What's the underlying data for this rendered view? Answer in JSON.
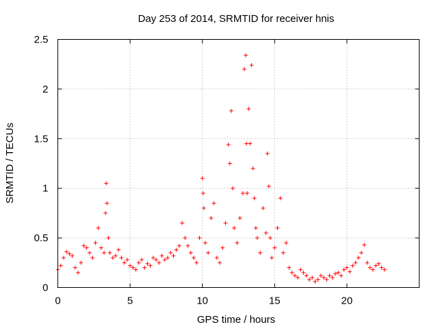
{
  "chart_data": {
    "type": "scatter",
    "title": "Day 253 of 2014, SRMTID for receiver hnis",
    "xlabel": "GPS time / hours",
    "ylabel": "SRMTID / TECUs",
    "xlim": [
      0,
      25
    ],
    "ylim": [
      0,
      2.5
    ],
    "xticks": [
      0,
      5,
      10,
      15,
      20
    ],
    "xtick_labels": [
      "0",
      "5",
      "10",
      "15",
      "20"
    ],
    "yticks": [
      0,
      0.5,
      1,
      1.5,
      2,
      2.5
    ],
    "ytick_labels": [
      "0",
      "0.5",
      "1",
      "1.5",
      "2",
      "2.5"
    ],
    "grid": true,
    "marker": "+",
    "color": "#ff0000",
    "series": [
      {
        "name": "SRMTID",
        "x": [
          0.0,
          0.2,
          0.4,
          0.6,
          0.8,
          1.0,
          1.2,
          1.4,
          1.6,
          1.8,
          2.0,
          2.2,
          2.4,
          2.6,
          2.8,
          3.0,
          3.2,
          3.3,
          3.35,
          3.4,
          3.5,
          3.6,
          3.8,
          4.0,
          4.2,
          4.4,
          4.6,
          4.8,
          5.0,
          5.2,
          5.4,
          5.6,
          5.8,
          6.0,
          6.2,
          6.4,
          6.6,
          6.8,
          7.0,
          7.2,
          7.4,
          7.6,
          7.8,
          8.0,
          8.2,
          8.4,
          8.6,
          8.8,
          9.0,
          9.2,
          9.4,
          9.6,
          9.8,
          10.0,
          10.05,
          10.1,
          10.2,
          10.4,
          10.6,
          10.8,
          11.0,
          11.2,
          11.4,
          11.6,
          11.8,
          11.9,
          12.0,
          12.1,
          12.2,
          12.4,
          12.6,
          12.8,
          12.9,
          13.0,
          13.05,
          13.1,
          13.2,
          13.3,
          13.4,
          13.5,
          13.6,
          13.7,
          13.8,
          14.0,
          14.2,
          14.4,
          14.5,
          14.6,
          14.7,
          14.8,
          15.0,
          15.2,
          15.4,
          15.6,
          15.8,
          16.0,
          16.2,
          16.4,
          16.6,
          16.8,
          17.0,
          17.2,
          17.4,
          17.6,
          17.8,
          18.0,
          18.2,
          18.4,
          18.6,
          18.8,
          19.0,
          19.2,
          19.4,
          19.6,
          19.8,
          20.0,
          20.2,
          20.4,
          20.6,
          20.8,
          21.0,
          21.2,
          21.4,
          21.6,
          21.8,
          22.0,
          22.2,
          22.4,
          22.6
        ],
        "y": [
          0.18,
          0.22,
          0.3,
          0.36,
          0.34,
          0.32,
          0.2,
          0.15,
          0.25,
          0.42,
          0.4,
          0.35,
          0.3,
          0.45,
          0.6,
          0.4,
          0.35,
          0.75,
          1.05,
          0.85,
          0.5,
          0.35,
          0.3,
          0.32,
          0.38,
          0.3,
          0.25,
          0.28,
          0.22,
          0.2,
          0.18,
          0.25,
          0.28,
          0.2,
          0.24,
          0.22,
          0.3,
          0.28,
          0.25,
          0.32,
          0.28,
          0.3,
          0.35,
          0.32,
          0.38,
          0.42,
          0.65,
          0.5,
          0.42,
          0.35,
          0.3,
          0.25,
          0.5,
          1.1,
          0.95,
          0.8,
          0.45,
          0.35,
          0.7,
          0.85,
          0.3,
          0.25,
          0.4,
          0.65,
          1.44,
          1.25,
          1.78,
          1.0,
          0.6,
          0.45,
          0.7,
          0.95,
          2.2,
          2.34,
          1.45,
          0.95,
          1.8,
          1.45,
          2.24,
          1.2,
          0.9,
          0.6,
          0.5,
          0.35,
          0.8,
          0.55,
          1.35,
          1.02,
          0.5,
          0.3,
          0.4,
          0.6,
          0.9,
          0.35,
          0.45,
          0.2,
          0.15,
          0.12,
          0.1,
          0.18,
          0.15,
          0.12,
          0.08,
          0.1,
          0.06,
          0.08,
          0.12,
          0.1,
          0.08,
          0.12,
          0.1,
          0.14,
          0.15,
          0.12,
          0.18,
          0.2,
          0.16,
          0.22,
          0.25,
          0.3,
          0.35,
          0.43,
          0.25,
          0.2,
          0.18,
          0.22,
          0.24,
          0.2,
          0.18
        ]
      }
    ]
  }
}
